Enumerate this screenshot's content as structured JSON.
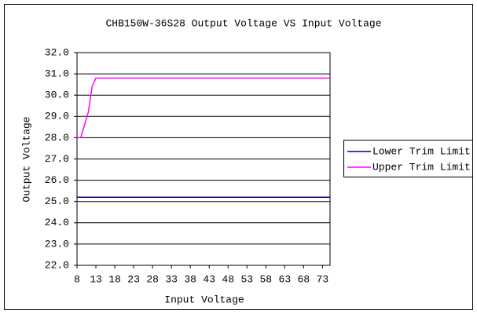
{
  "chart_data": {
    "type": "line",
    "title": "CHB150W-36S28 Output Voltage VS Input Voltage",
    "x_label": "Input Voltage",
    "y_label": "Output Voltage",
    "xlim": [
      8,
      75
    ],
    "xticks": [
      8,
      13,
      18,
      23,
      28,
      33,
      38,
      43,
      48,
      53,
      58,
      63,
      68,
      73
    ],
    "ylim": [
      22,
      32
    ],
    "yticks": [
      {
        "value": 22,
        "label": "22.0"
      },
      {
        "value": 23,
        "label": "23.0"
      },
      {
        "value": 24,
        "label": "24.0"
      },
      {
        "value": 25,
        "label": "25.0"
      },
      {
        "value": 26,
        "label": "26.0"
      },
      {
        "value": 27,
        "label": "27.0"
      },
      {
        "value": 28,
        "label": "28.0"
      },
      {
        "value": 29,
        "label": "29.0"
      },
      {
        "value": 30,
        "label": "30.0"
      },
      {
        "value": 31,
        "label": "31.0"
      },
      {
        "value": 32,
        "label": "32.0"
      }
    ],
    "grid": true,
    "legend": "right",
    "series": [
      {
        "name": "Lower Trim Limit",
        "color": "#000080",
        "x": [
          8,
          75
        ],
        "values": [
          25.2,
          25.2
        ]
      },
      {
        "name": "Upper Trim Limit",
        "color": "#ff00ff",
        "x": [
          8,
          9,
          10,
          11,
          12,
          13,
          75
        ],
        "values": [
          28.0,
          28.0,
          28.6,
          29.2,
          30.4,
          30.8,
          30.8
        ]
      }
    ]
  }
}
